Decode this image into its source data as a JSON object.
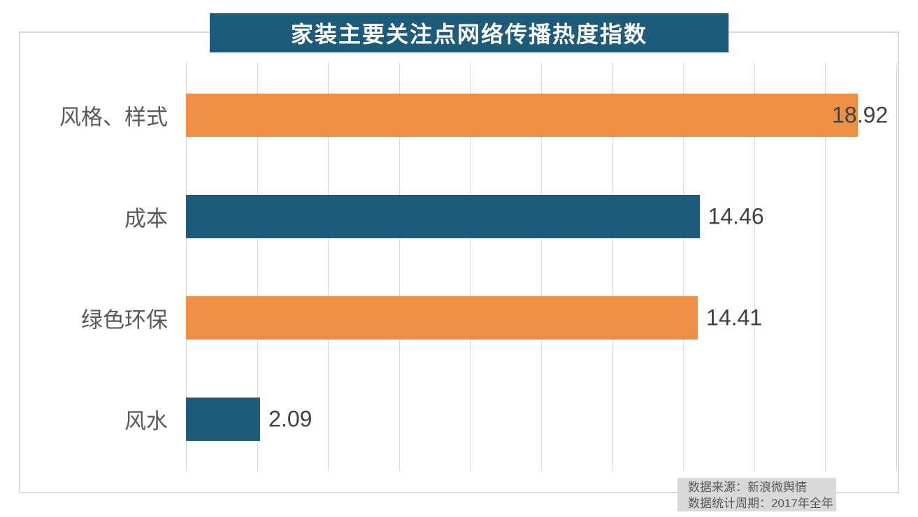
{
  "chart_data": {
    "type": "bar",
    "orientation": "horizontal",
    "title": "家装主要关注点网络传播热度指数",
    "categories": [
      "风格、样式",
      "成本",
      "绿色环保",
      "风水"
    ],
    "values": [
      18.92,
      14.46,
      14.41,
      2.09
    ],
    "value_labels": [
      "18.92",
      "14.46",
      "14.41",
      "2.09"
    ],
    "bar_colors": [
      "#EF8E45",
      "#1E5B7A",
      "#EF8E45",
      "#1E5B7A"
    ],
    "xlim": [
      0,
      20
    ],
    "gridline_interval": 2,
    "grid": true,
    "legend": "none",
    "xlabel": "",
    "ylabel": ""
  },
  "source_note": {
    "line1": "数据来源：新浪微舆情",
    "line2": "数据统计周期：2017年全年"
  },
  "colors": {
    "teal": "#1E5B7A",
    "orange": "#EF8E45",
    "grid": "#D9D9D9",
    "frame": "#DADADA",
    "category_text": "#595959",
    "value_text": "#404040",
    "title_bg": "#1E5B7A",
    "title_text": "#FFFFFF",
    "note_bg": "#D9D9D9",
    "note_text": "#595959"
  }
}
